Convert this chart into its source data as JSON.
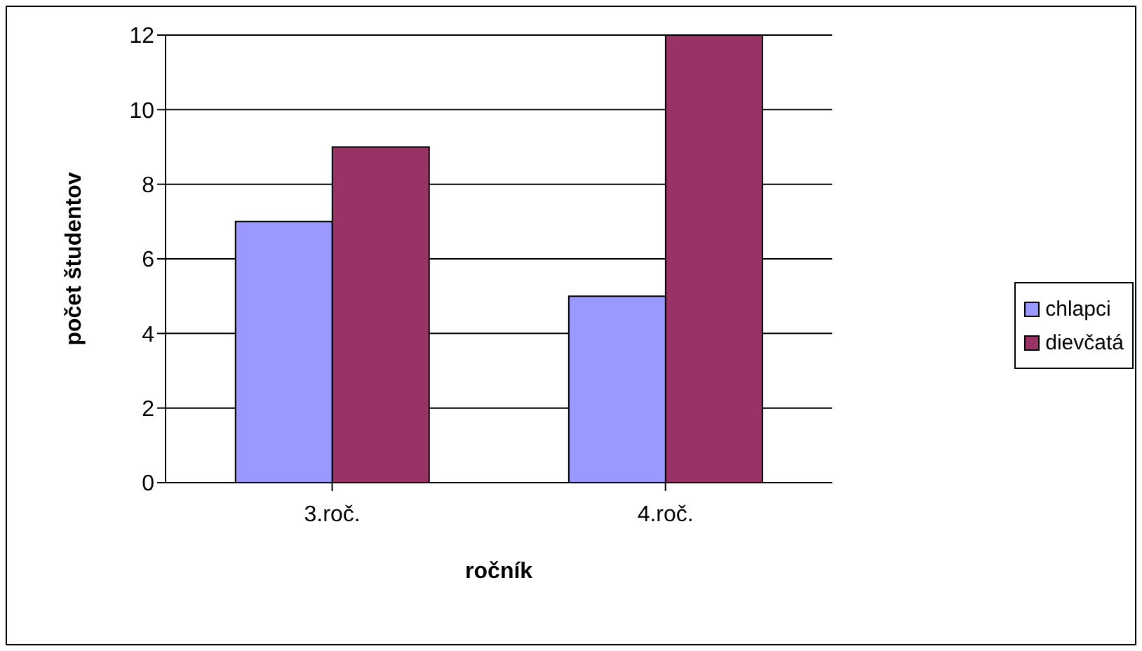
{
  "chart_data": {
    "type": "bar",
    "xlabel": "ročník",
    "ylabel": "počet študentov",
    "categories": [
      "3.roč.",
      "4.roč."
    ],
    "series": [
      {
        "name": "chlapci",
        "color": "#9999ff",
        "values": [
          7,
          5
        ]
      },
      {
        "name": "dievčatá",
        "color": "#993366",
        "values": [
          9,
          12
        ]
      }
    ],
    "ylim": [
      0,
      12
    ],
    "yticks": [
      0,
      2,
      4,
      6,
      8,
      10,
      12
    ],
    "grid": "y",
    "legend": "right"
  }
}
